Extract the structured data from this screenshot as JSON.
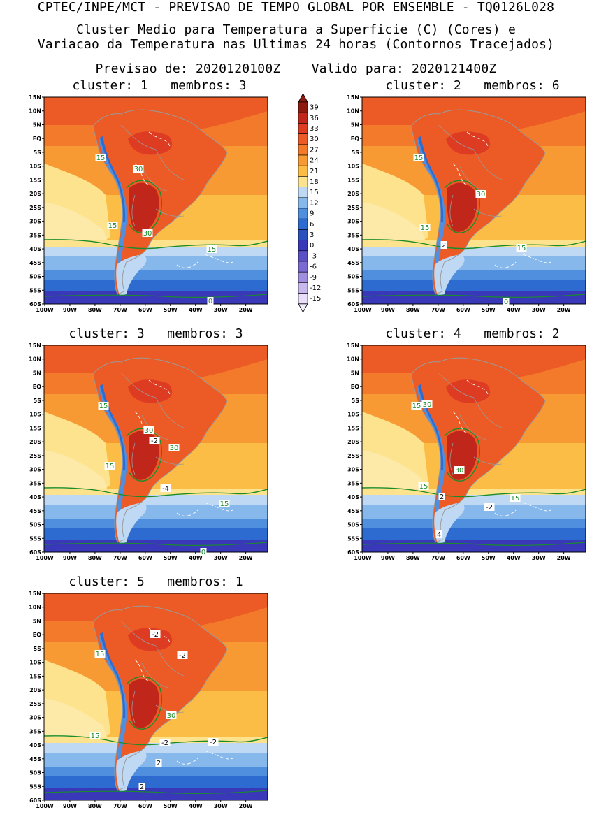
{
  "header": {
    "line1": "CPTEC/INPE/MCT - PREVISAO DE TEMPO GLOBAL POR ENSEMBLE - TQ0126L028",
    "line2": "Cluster Medio para Temperatura a Superficie (C) (Cores) e",
    "line3": "Variacao da Temperatura nas Ultimas 24 horas (Contornos Tracejados)",
    "line4": "Previsao de: 2020120100Z    Valido para: 2020121400Z"
  },
  "axes": {
    "lat_labels": [
      "15N",
      "10N",
      "5N",
      "EQ",
      "5S",
      "10S",
      "15S",
      "20S",
      "25S",
      "30S",
      "35S",
      "40S",
      "45S",
      "50S",
      "55S",
      "60S"
    ],
    "lon_labels": [
      "100W",
      "90W",
      "80W",
      "70W",
      "60W",
      "50W",
      "40W",
      "30W",
      "20W"
    ]
  },
  "colorbar": {
    "levels": [
      "39",
      "36",
      "33",
      "30",
      "27",
      "24",
      "21",
      "18",
      "15",
      "12",
      "9",
      "6",
      "3",
      "0",
      "-3",
      "-6",
      "-9",
      "-12",
      "-15"
    ],
    "colors": [
      "#8c1a0e",
      "#c0271a",
      "#dd3c22",
      "#ec5a25",
      "#f27a2a",
      "#f79a33",
      "#fbbd46",
      "#fde38e",
      "#bfd9f5",
      "#86b8ec",
      "#4f8fde",
      "#2d6bd0",
      "#2b4fbd",
      "#3838b8",
      "#5a4fc6",
      "#7a6ad2",
      "#a08ee0",
      "#c7b8ee",
      "#e8defa"
    ]
  },
  "panels": [
    {
      "title": "cluster: 1   membros: 3",
      "labels": [
        {
          "t": "15",
          "x": 81,
          "y": 88
        },
        {
          "t": "30",
          "x": 135,
          "y": 104
        },
        {
          "t": "15",
          "x": 98,
          "y": 185
        },
        {
          "t": "30",
          "x": 148,
          "y": 196
        },
        {
          "t": "15",
          "x": 240,
          "y": 219
        },
        {
          "t": "0",
          "x": 238,
          "y": 293
        }
      ]
    },
    {
      "title": "cluster: 2   membros: 6",
      "labels": [
        {
          "t": "15",
          "x": 81,
          "y": 88
        },
        {
          "t": "30",
          "x": 170,
          "y": 140
        },
        {
          "t": "15",
          "x": 90,
          "y": 188
        },
        {
          "t": "2",
          "x": 117,
          "y": 213
        },
        {
          "t": "15",
          "x": 228,
          "y": 217
        },
        {
          "t": "0",
          "x": 206,
          "y": 294
        }
      ]
    },
    {
      "title": "cluster: 3   membros: 3",
      "labels": [
        {
          "t": "15",
          "x": 85,
          "y": 88
        },
        {
          "t": "30",
          "x": 150,
          "y": 123
        },
        {
          "t": "-2",
          "x": 158,
          "y": 138
        },
        {
          "t": "30",
          "x": 186,
          "y": 148
        },
        {
          "t": "15",
          "x": 94,
          "y": 174
        },
        {
          "t": "-4",
          "x": 174,
          "y": 206
        },
        {
          "t": "15",
          "x": 258,
          "y": 228
        },
        {
          "t": "0",
          "x": 228,
          "y": 297
        }
      ]
    },
    {
      "title": "cluster: 4   membros: 2",
      "labels": [
        {
          "t": "15",
          "x": 78,
          "y": 88
        },
        {
          "t": "30",
          "x": 93,
          "y": 86
        },
        {
          "t": "30",
          "x": 139,
          "y": 180
        },
        {
          "t": "15",
          "x": 88,
          "y": 203
        },
        {
          "t": "2",
          "x": 114,
          "y": 218
        },
        {
          "t": "15",
          "x": 219,
          "y": 220
        },
        {
          "t": "-2",
          "x": 182,
          "y": 233
        },
        {
          "t": "4",
          "x": 110,
          "y": 272
        }
      ]
    },
    {
      "title": "cluster: 5   membros: 1",
      "labels": [
        {
          "t": "-2",
          "x": 159,
          "y": 60
        },
        {
          "t": "15",
          "x": 80,
          "y": 88
        },
        {
          "t": "-2",
          "x": 198,
          "y": 90
        },
        {
          "t": "30",
          "x": 182,
          "y": 176
        },
        {
          "t": "15",
          "x": 73,
          "y": 205
        },
        {
          "t": "-2",
          "x": 173,
          "y": 215
        },
        {
          "t": "-2",
          "x": 242,
          "y": 214
        },
        {
          "t": "2",
          "x": 164,
          "y": 244
        },
        {
          "t": "2",
          "x": 140,
          "y": 278
        }
      ]
    }
  ]
}
